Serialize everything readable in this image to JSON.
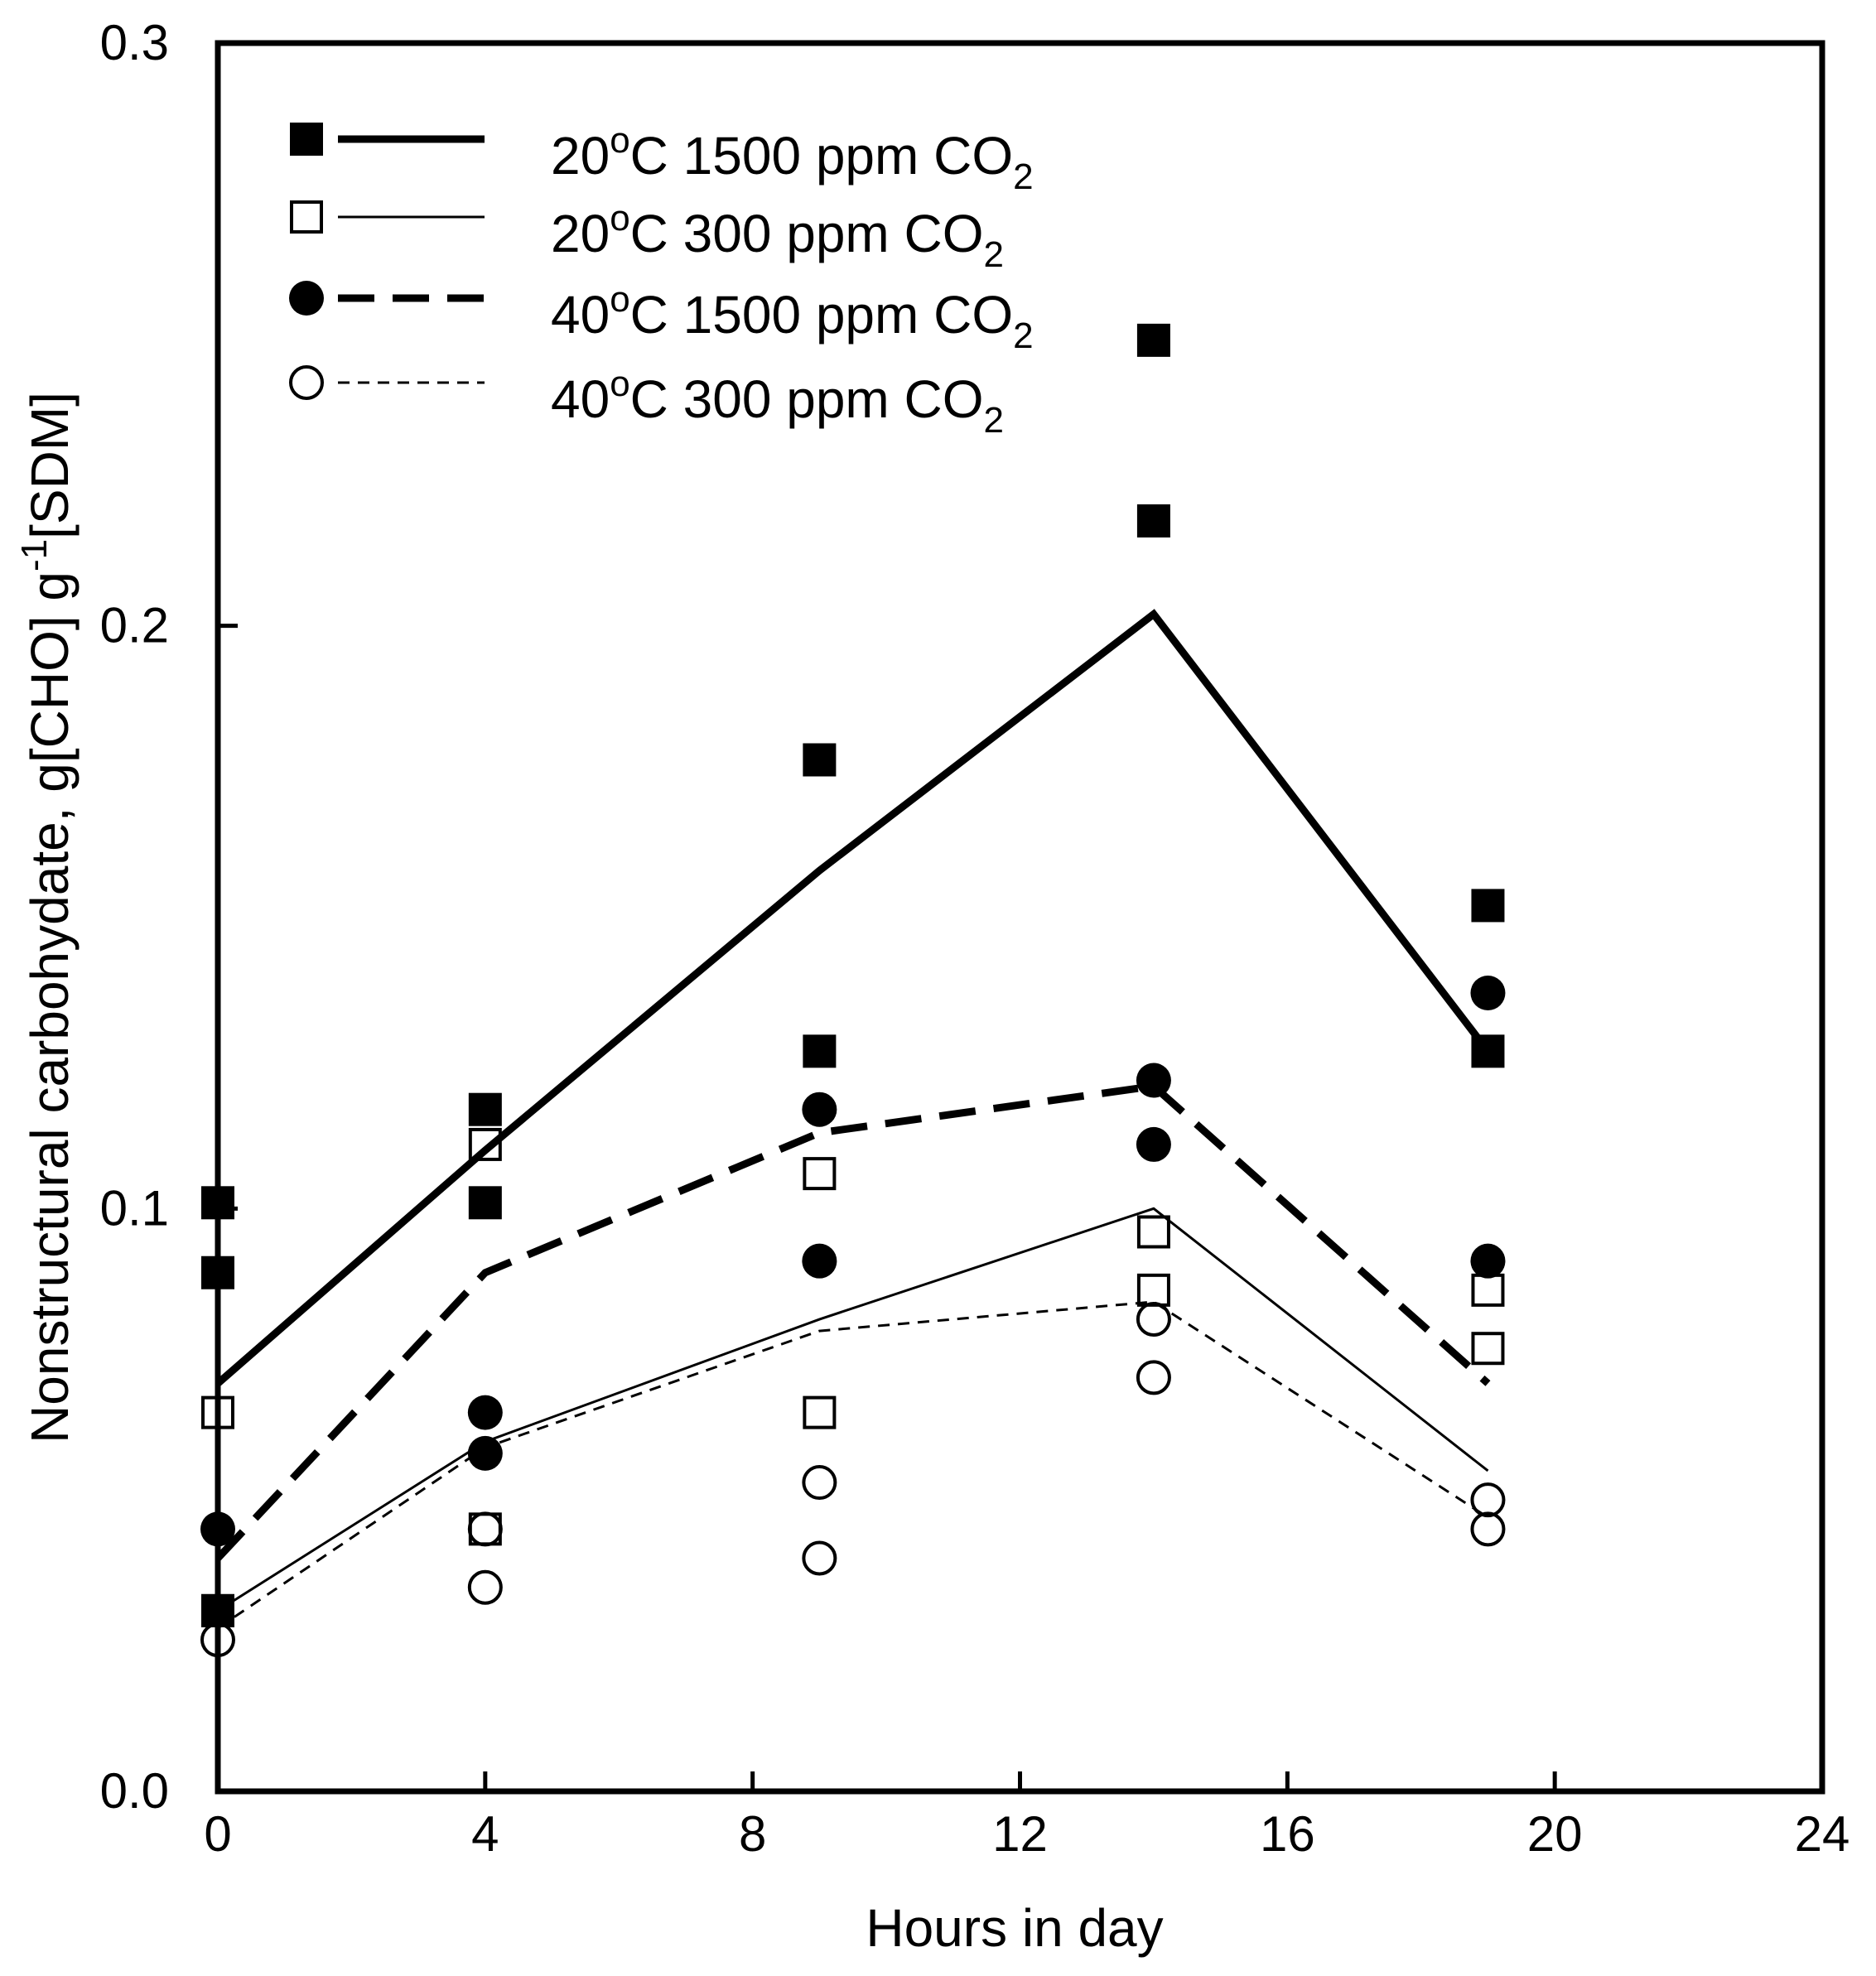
{
  "chart_data": {
    "type": "scatter",
    "title": "",
    "xlabel": "Hours in day",
    "ylabel": {
      "main": "Nonstructural carbohydate, g[CHO] g",
      "sup": "-1",
      "tail": "[SDM]"
    },
    "xlim": [
      0,
      24
    ],
    "ylim": [
      0,
      0.3
    ],
    "x_ticks": [
      0,
      4,
      8,
      12,
      16,
      20,
      24
    ],
    "x_tick_labels": [
      "0",
      "4",
      "8",
      "12",
      "16",
      "20",
      "24"
    ],
    "y_ticks": [
      0,
      0.1,
      0.2,
      0.3
    ],
    "y_tick_labels": [
      "0.0",
      "0.1",
      "0.2",
      "0.3"
    ],
    "grid": false,
    "legend_placement": "top-left",
    "series": [
      {
        "name": "20oC 1500 ppm CO2",
        "label": {
          "a": "20",
          "sup": "o",
          "b": "C 1500 ppm CO",
          "sub": "2"
        },
        "marker": "square-filled",
        "line": "thick-solid",
        "points": [
          [
            0,
            0.101
          ],
          [
            0,
            0.089
          ],
          [
            0,
            0.031
          ],
          [
            4,
            0.117
          ],
          [
            4,
            0.101
          ],
          [
            9,
            0.177
          ],
          [
            9,
            0.127
          ],
          [
            14,
            0.249
          ],
          [
            14,
            0.218
          ],
          [
            19,
            0.152
          ],
          [
            19,
            0.127
          ]
        ],
        "line_points": [
          [
            0,
            0.07
          ],
          [
            4,
            0.11
          ],
          [
            9,
            0.158
          ],
          [
            14,
            0.202
          ],
          [
            19,
            0.127
          ]
        ]
      },
      {
        "name": "20oC 300 ppm CO2",
        "label": {
          "a": "20",
          "sup": "o",
          "b": "C 300 ppm CO",
          "sub": "2"
        },
        "marker": "square-open",
        "line": "thin-solid",
        "points": [
          [
            0,
            0.065
          ],
          [
            0,
            0.031
          ],
          [
            4,
            0.111
          ],
          [
            4,
            0.045
          ],
          [
            9,
            0.106
          ],
          [
            9,
            0.065
          ],
          [
            14,
            0.096
          ],
          [
            14,
            0.086
          ],
          [
            19,
            0.086
          ],
          [
            19,
            0.076
          ]
        ],
        "line_points": [
          [
            0,
            0.031
          ],
          [
            4,
            0.06
          ],
          [
            9,
            0.081
          ],
          [
            14,
            0.1
          ],
          [
            19,
            0.055
          ]
        ]
      },
      {
        "name": "40oC 1500 ppm CO2",
        "label": {
          "a": "40",
          "sup": "o",
          "b": "C 1500 ppm CO",
          "sub": "2"
        },
        "marker": "circle-filled",
        "line": "thick-dashed",
        "points": [
          [
            0,
            0.045
          ],
          [
            4,
            0.065
          ],
          [
            4,
            0.058
          ],
          [
            9,
            0.117
          ],
          [
            9,
            0.091
          ],
          [
            14,
            0.122
          ],
          [
            14,
            0.111
          ],
          [
            19,
            0.137
          ],
          [
            19,
            0.091
          ]
        ],
        "line_points": [
          [
            0,
            0.04
          ],
          [
            4,
            0.089
          ],
          [
            9,
            0.113
          ],
          [
            14,
            0.121
          ],
          [
            19,
            0.07
          ]
        ]
      },
      {
        "name": "40oC 300 ppm CO2",
        "label": {
          "a": "40",
          "sup": "o",
          "b": "C 300 ppm CO",
          "sub": "2"
        },
        "marker": "circle-open",
        "line": "thin-dashed",
        "points": [
          [
            0,
            0.026
          ],
          [
            4,
            0.045
          ],
          [
            4,
            0.035
          ],
          [
            9,
            0.053
          ],
          [
            9,
            0.04
          ],
          [
            14,
            0.081
          ],
          [
            14,
            0.071
          ],
          [
            19,
            0.05
          ],
          [
            19,
            0.045
          ]
        ],
        "line_points": [
          [
            0,
            0.028
          ],
          [
            4,
            0.059
          ],
          [
            9,
            0.079
          ],
          [
            14,
            0.084
          ],
          [
            19,
            0.047
          ]
        ]
      }
    ]
  }
}
